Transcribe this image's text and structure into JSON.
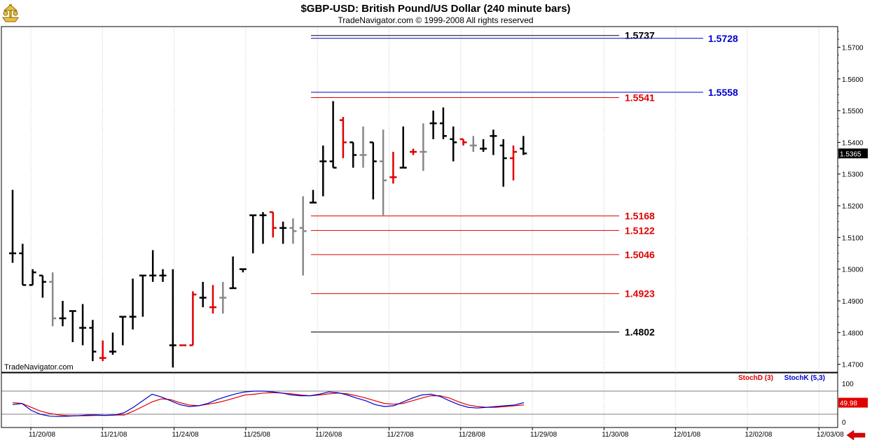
{
  "header": {
    "title": "$GBP-USD:  British Pound/US Dollar  (240 minute bars)",
    "copyright": "TradeNavigator.com © 1999-2008 All rights reserved"
  },
  "watermark": "TradeNavigator.com",
  "chart_data": [
    {
      "type": "bar",
      "subtype": "ohlc",
      "title": "$GBP-USD:  British Pound/US Dollar  (240 minute bars)",
      "ylim": [
        1.4675,
        1.5765
      ],
      "y_ticks": [
        "1.5700",
        "1.5600",
        "1.5500",
        "1.5400",
        "1.5300",
        "1.5200",
        "1.5100",
        "1.5000",
        "1.4900",
        "1.4800",
        "1.4700"
      ],
      "x_ticks": [
        "11/20/08",
        "11/21/08",
        "11/24/08",
        "11/25/08",
        "11/26/08",
        "11/27/08",
        "11/28/08",
        "11/29/08",
        "11/30/08",
        "12/01/08",
        "12/02/08",
        "12/03/08"
      ],
      "last_price": "1.5365",
      "colors": {
        "up": "#000000",
        "down": "#e00000",
        "neutral": "#888888"
      },
      "bars": [
        {
          "i": 0,
          "o": 1.505,
          "h": 1.525,
          "l": 1.502,
          "c": 1.505,
          "color": "up"
        },
        {
          "i": 1,
          "o": 1.505,
          "h": 1.508,
          "l": 1.495,
          "c": 1.495,
          "color": "up"
        },
        {
          "i": 2,
          "o": 1.495,
          "h": 1.5,
          "l": 1.495,
          "c": 1.499,
          "color": "up"
        },
        {
          "i": 3,
          "o": 1.498,
          "h": 1.498,
          "l": 1.491,
          "c": 1.496,
          "color": "up"
        },
        {
          "i": 4,
          "o": 1.496,
          "h": 1.499,
          "l": 1.482,
          "c": 1.4845,
          "color": "neutral"
        },
        {
          "i": 5,
          "o": 1.4845,
          "h": 1.49,
          "l": 1.482,
          "c": 1.4845,
          "color": "up"
        },
        {
          "i": 6,
          "o": 1.4868,
          "h": 1.4868,
          "l": 1.477,
          "c": 1.4868,
          "color": "up"
        },
        {
          "i": 7,
          "o": 1.4815,
          "h": 1.489,
          "l": 1.476,
          "c": 1.4815,
          "color": "up"
        },
        {
          "i": 8,
          "o": 1.4815,
          "h": 1.484,
          "l": 1.471,
          "c": 1.474,
          "color": "up"
        },
        {
          "i": 9,
          "o": 1.472,
          "h": 1.4775,
          "l": 1.471,
          "c": 1.472,
          "color": "down"
        },
        {
          "i": 10,
          "o": 1.474,
          "h": 1.48,
          "l": 1.473,
          "c": 1.474,
          "color": "up"
        },
        {
          "i": 11,
          "o": 1.485,
          "h": 1.485,
          "l": 1.476,
          "c": 1.485,
          "color": "up"
        },
        {
          "i": 12,
          "o": 1.485,
          "h": 1.497,
          "l": 1.481,
          "c": 1.485,
          "color": "up"
        },
        {
          "i": 13,
          "o": 1.498,
          "h": 1.498,
          "l": 1.485,
          "c": 1.498,
          "color": "up"
        },
        {
          "i": 14,
          "o": 1.498,
          "h": 1.506,
          "l": 1.496,
          "c": 1.498,
          "color": "up"
        },
        {
          "i": 15,
          "o": 1.498,
          "h": 1.5,
          "l": 1.496,
          "c": 1.498,
          "color": "up"
        },
        {
          "i": 16,
          "o": 1.476,
          "h": 1.5,
          "l": 1.469,
          "c": 1.476,
          "color": "up"
        },
        {
          "i": 17,
          "o": 1.476,
          "h": 1.476,
          "l": 1.476,
          "c": 1.476,
          "color": "down"
        },
        {
          "i": 18,
          "o": 1.476,
          "h": 1.493,
          "l": 1.476,
          "c": 1.492,
          "color": "down"
        },
        {
          "i": 19,
          "o": 1.491,
          "h": 1.496,
          "l": 1.488,
          "c": 1.491,
          "color": "up"
        },
        {
          "i": 20,
          "o": 1.488,
          "h": 1.495,
          "l": 1.486,
          "c": 1.488,
          "color": "down"
        },
        {
          "i": 21,
          "o": 1.491,
          "h": 1.496,
          "l": 1.486,
          "c": 1.491,
          "color": "neutral"
        },
        {
          "i": 22,
          "o": 1.494,
          "h": 1.504,
          "l": 1.494,
          "c": 1.494,
          "color": "up"
        },
        {
          "i": 23,
          "o": 1.5,
          "h": 1.5,
          "l": 1.499,
          "c": 1.5,
          "color": "up"
        },
        {
          "i": 24,
          "o": 1.517,
          "h": 1.517,
          "l": 1.505,
          "c": 1.517,
          "color": "up"
        },
        {
          "i": 25,
          "o": 1.517,
          "h": 1.518,
          "l": 1.508,
          "c": 1.517,
          "color": "up"
        },
        {
          "i": 26,
          "o": 1.518,
          "h": 1.518,
          "l": 1.51,
          "c": 1.513,
          "color": "down"
        },
        {
          "i": 27,
          "o": 1.513,
          "h": 1.515,
          "l": 1.508,
          "c": 1.513,
          "color": "up"
        },
        {
          "i": 28,
          "o": 1.513,
          "h": 1.516,
          "l": 1.508,
          "c": 1.512,
          "color": "neutral"
        },
        {
          "i": 29,
          "o": 1.513,
          "h": 1.523,
          "l": 1.498,
          "c": 1.512,
          "color": "neutral"
        },
        {
          "i": 30,
          "o": 1.521,
          "h": 1.525,
          "l": 1.521,
          "c": 1.521,
          "color": "up"
        },
        {
          "i": 31,
          "o": 1.534,
          "h": 1.539,
          "l": 1.523,
          "c": 1.534,
          "color": "up"
        },
        {
          "i": 32,
          "o": 1.534,
          "h": 1.553,
          "l": 1.532,
          "c": 1.532,
          "color": "up"
        },
        {
          "i": 33,
          "o": 1.547,
          "h": 1.548,
          "l": 1.535,
          "c": 1.54,
          "color": "down"
        },
        {
          "i": 34,
          "o": 1.54,
          "h": 1.54,
          "l": 1.532,
          "c": 1.536,
          "color": "up"
        },
        {
          "i": 35,
          "o": 1.536,
          "h": 1.545,
          "l": 1.532,
          "c": 1.536,
          "color": "neutral"
        },
        {
          "i": 36,
          "o": 1.54,
          "h": 1.54,
          "l": 1.522,
          "c": 1.534,
          "color": "up"
        },
        {
          "i": 37,
          "o": 1.534,
          "h": 1.544,
          "l": 1.517,
          "c": 1.528,
          "color": "neutral"
        },
        {
          "i": 38,
          "o": 1.529,
          "h": 1.537,
          "l": 1.527,
          "c": 1.529,
          "color": "down"
        },
        {
          "i": 39,
          "o": 1.532,
          "h": 1.545,
          "l": 1.532,
          "c": 1.532,
          "color": "up"
        },
        {
          "i": 40,
          "o": 1.537,
          "h": 1.538,
          "l": 1.536,
          "c": 1.537,
          "color": "down"
        },
        {
          "i": 41,
          "o": 1.537,
          "h": 1.546,
          "l": 1.531,
          "c": 1.537,
          "color": "neutral"
        },
        {
          "i": 42,
          "o": 1.546,
          "h": 1.55,
          "l": 1.541,
          "c": 1.546,
          "color": "up"
        },
        {
          "i": 43,
          "o": 1.546,
          "h": 1.551,
          "l": 1.541,
          "c": 1.542,
          "color": "up"
        },
        {
          "i": 44,
          "o": 1.541,
          "h": 1.545,
          "l": 1.534,
          "c": 1.54,
          "color": "up"
        },
        {
          "i": 45,
          "o": 1.541,
          "h": 1.541,
          "l": 1.539,
          "c": 1.54,
          "color": "down"
        },
        {
          "i": 46,
          "o": 1.539,
          "h": 1.542,
          "l": 1.537,
          "c": 1.539,
          "color": "neutral"
        },
        {
          "i": 47,
          "o": 1.538,
          "h": 1.541,
          "l": 1.537,
          "c": 1.538,
          "color": "up"
        },
        {
          "i": 48,
          "o": 1.542,
          "h": 1.544,
          "l": 1.536,
          "c": 1.542,
          "color": "up"
        },
        {
          "i": 49,
          "o": 1.539,
          "h": 1.541,
          "l": 1.526,
          "c": 1.535,
          "color": "up"
        },
        {
          "i": 50,
          "o": 1.535,
          "h": 1.539,
          "l": 1.528,
          "c": 1.537,
          "color": "down"
        },
        {
          "i": 51,
          "o": 1.538,
          "h": 1.542,
          "l": 1.536,
          "c": 1.5365,
          "color": "up"
        }
      ],
      "levels": [
        {
          "price": 1.5737,
          "label": "1.5737",
          "color": "#000000",
          "side": "inner"
        },
        {
          "price": 1.5728,
          "label": "1.5728",
          "color": "#0000cc",
          "side": "outer"
        },
        {
          "price": 1.5558,
          "label": "1.5558",
          "color": "#0000cc",
          "side": "outer"
        },
        {
          "price": 1.5541,
          "label": "1.5541",
          "color": "#e00000",
          "side": "inner"
        },
        {
          "price": 1.5168,
          "label": "1.5168",
          "color": "#e00000",
          "side": "inner"
        },
        {
          "price": 1.5122,
          "label": "1.5122",
          "color": "#e00000",
          "side": "inner"
        },
        {
          "price": 1.5046,
          "label": "1.5046",
          "color": "#e00000",
          "side": "inner"
        },
        {
          "price": 1.4923,
          "label": "1.4923",
          "color": "#e00000",
          "side": "inner"
        },
        {
          "price": 1.4802,
          "label": "1.4802",
          "color": "#000000",
          "side": "inner"
        }
      ]
    },
    {
      "type": "line",
      "ylim": [
        0,
        100
      ],
      "y_ticks": [
        "100",
        "0"
      ],
      "reference_lines": [
        80,
        20
      ],
      "last_value": "49.98",
      "series": [
        {
          "name": "StochD (3)",
          "color": "#e00000",
          "values": [
            50,
            48,
            38,
            28,
            22,
            18,
            16,
            16,
            16,
            17,
            17,
            18,
            18,
            28,
            40,
            52,
            60,
            58,
            50,
            44,
            42,
            46,
            50,
            56,
            63,
            70,
            72,
            75,
            76,
            75,
            73,
            70,
            68,
            70,
            73,
            75,
            73,
            68,
            62,
            55,
            48,
            46,
            48,
            55,
            62,
            68,
            68,
            62,
            52,
            44,
            40,
            38,
            38,
            40,
            42,
            44
          ]
        },
        {
          "name": "StochK (5,3)",
          "color": "#0000cc",
          "values": [
            45,
            48,
            30,
            20,
            15,
            14,
            15,
            16,
            18,
            18,
            17,
            18,
            24,
            38,
            55,
            72,
            65,
            55,
            45,
            40,
            42,
            48,
            58,
            66,
            73,
            78,
            80,
            80,
            78,
            75,
            70,
            68,
            68,
            72,
            78,
            76,
            70,
            62,
            55,
            45,
            40,
            42,
            52,
            62,
            70,
            72,
            66,
            55,
            45,
            38,
            36,
            38,
            40,
            42,
            44,
            50
          ]
        }
      ]
    }
  ]
}
